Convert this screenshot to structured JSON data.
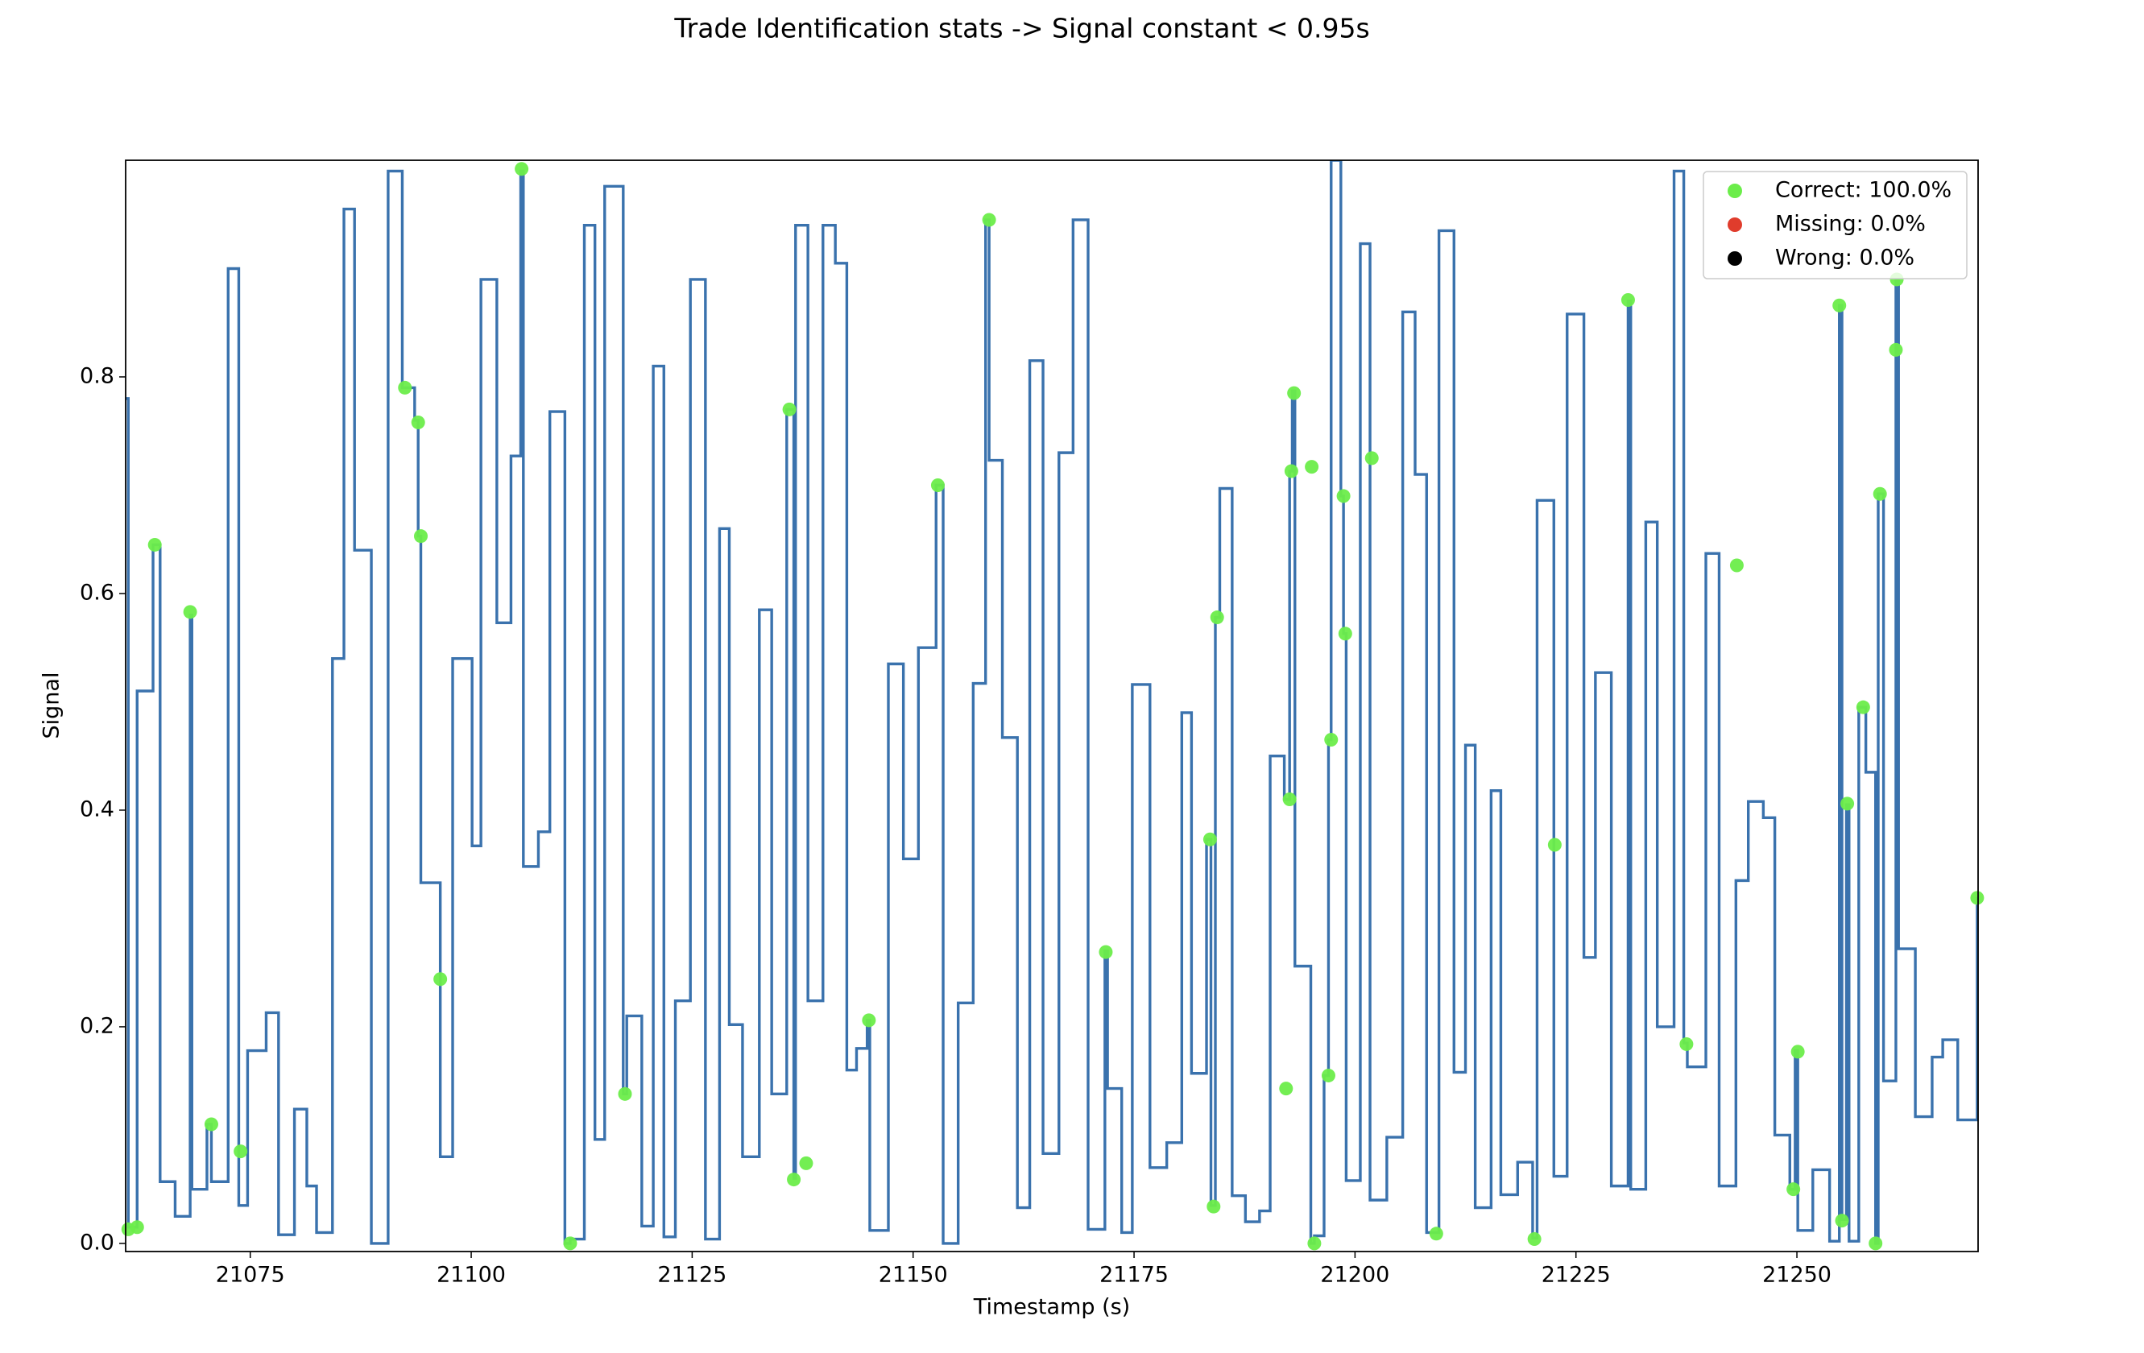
{
  "chart_data": {
    "type": "line",
    "step": "post",
    "title": "Trade Identification stats -> Signal constant < 0.95s",
    "xlabel": "Timestamp (s)",
    "ylabel": "Signal",
    "color": "#3a72ad",
    "xlim": [
      21060.9,
      21270.5
    ],
    "ylim": [
      -0.0075,
      1.0
    ],
    "xticks": [
      21075,
      21100,
      21125,
      21150,
      21175,
      21200,
      21225,
      21250
    ],
    "yticks": [
      {
        "value": 0,
        "label": "0.0"
      },
      0.2,
      0.4,
      0.6,
      0.8
    ],
    "legend": "upper right",
    "x": [
      21060.9,
      21061.2,
      21062.2,
      21064.0,
      21064.8,
      21066.5,
      21068.2,
      21068.4,
      21070.1,
      21070.6,
      21072.5,
      21073.7,
      21074.7,
      21076.8,
      21078.2,
      21080.0,
      21081.4,
      21082.5,
      21084.3,
      21085.6,
      21086.8,
      21088.7,
      21090.6,
      21092.2,
      21093.6,
      21094.0,
      21094.3,
      21096.5,
      21097.9,
      21100.1,
      21101.1,
      21102.9,
      21104.5,
      21105.6,
      21105.9,
      21107.6,
      21108.9,
      21110.6,
      21111.2,
      21112.8,
      21114.0,
      21115.1,
      21117.2,
      21117.6,
      21119.3,
      21120.6,
      21121.8,
      21123.1,
      21124.8,
      21126.5,
      21128.1,
      21129.2,
      21130.7,
      21132.6,
      21134.0,
      21135.7,
      21136.5,
      21136.7,
      21138.1,
      21139.8,
      21141.2,
      21142.5,
      21143.6,
      21144.8,
      21145.1,
      21147.2,
      21148.9,
      21150.6,
      21152.6,
      21153.4,
      21155.1,
      21156.8,
      21158.2,
      21158.6,
      21160.1,
      21161.8,
      21163.2,
      21164.7,
      21166.5,
      21168.1,
      21169.8,
      21171.7,
      21172.0,
      21173.6,
      21174.8,
      21176.8,
      21178.7,
      21180.4,
      21181.5,
      21183.2,
      21183.7,
      21184.2,
      21184.7,
      21186.1,
      21187.6,
      21189.2,
      21190.4,
      21192.0,
      21192.6,
      21192.9,
      21193.2,
      21195.0,
      21195.4,
      21196.5,
      21197.0,
      21197.3,
      21198.4,
      21198.7,
      21199.0,
      21200.6,
      21201.7,
      21203.6,
      21205.4,
      21206.8,
      21208.1,
      21209.5,
      21211.2,
      21212.5,
      21213.6,
      21215.4,
      21216.5,
      21218.4,
      21220.1,
      21220.6,
      21222.5,
      21224.0,
      21225.9,
      21227.2,
      21229.0,
      21230.9,
      21231.2,
      21232.9,
      21234.2,
      21236.1,
      21237.2,
      21237.6,
      21239.7,
      21241.2,
      21243.1,
      21244.5,
      21246.2,
      21247.5,
      21249.2,
      21249.8,
      21250.1,
      21251.8,
      21253.7,
      21254.8,
      21255.1,
      21255.6,
      21255.9,
      21257.0,
      21257.8,
      21258.9,
      21259.2,
      21259.8,
      21261.2,
      21261.5,
      21263.4,
      21265.3,
      21266.5,
      21268.2,
      21270.4
    ],
    "values": [
      0.78,
      0.015,
      0.51,
      0.645,
      0.057,
      0.025,
      0.58,
      0.05,
      0.11,
      0.057,
      0.9,
      0.035,
      0.178,
      0.213,
      0.008,
      0.124,
      0.053,
      0.01,
      0.54,
      0.955,
      0.64,
      0.0,
      0.99,
      0.79,
      0.76,
      0.653,
      0.333,
      0.08,
      0.54,
      0.367,
      0.89,
      0.573,
      0.727,
      0.99,
      0.348,
      0.38,
      0.768,
      0.0,
      0.004,
      0.94,
      0.096,
      0.976,
      0.138,
      0.21,
      0.016,
      0.81,
      0.006,
      0.224,
      0.89,
      0.004,
      0.66,
      0.202,
      0.08,
      0.585,
      0.138,
      0.77,
      0.06,
      0.94,
      0.224,
      0.94,
      0.905,
      0.16,
      0.18,
      0.206,
      0.012,
      0.535,
      0.355,
      0.55,
      0.7,
      0.0,
      0.222,
      0.517,
      0.945,
      0.723,
      0.467,
      0.033,
      0.815,
      0.083,
      0.73,
      0.945,
      0.013,
      0.27,
      0.143,
      0.01,
      0.516,
      0.07,
      0.093,
      0.49,
      0.157,
      0.373,
      0.035,
      0.578,
      0.697,
      0.044,
      0.02,
      0.03,
      0.45,
      0.41,
      0.713,
      0.787,
      0.256,
      0.0,
      0.007,
      0.155,
      0.465,
      1.0,
      0.69,
      0.563,
      0.058,
      0.923,
      0.04,
      0.098,
      0.86,
      0.71,
      0.01,
      0.935,
      0.158,
      0.46,
      0.033,
      0.418,
      0.045,
      0.075,
      0.005,
      0.686,
      0.062,
      0.858,
      0.264,
      0.527,
      0.053,
      0.87,
      0.05,
      0.666,
      0.2,
      0.99,
      0.185,
      0.163,
      0.637,
      0.053,
      0.335,
      0.408,
      0.393,
      0.1,
      0.05,
      0.178,
      0.012,
      0.068,
      0.002,
      0.866,
      0.022,
      0.405,
      0.002,
      0.495,
      0.435,
      0.0,
      0.692,
      0.15,
      0.89,
      0.272,
      0.117,
      0.172,
      0.188,
      0.114,
      0.32
    ],
    "markers": [
      {
        "name": "Correct: 100.0%",
        "color": "#6bed4a",
        "x": [
          21061.2,
          21062.2,
          21064.2,
          21068.2,
          21070.6,
          21073.9,
          21092.5,
          21094.0,
          21094.3,
          21096.5,
          21105.7,
          21111.2,
          21117.4,
          21136.0,
          21136.5,
          21137.9,
          21145.0,
          21152.8,
          21158.6,
          21171.8,
          21183.6,
          21184.0,
          21184.4,
          21192.2,
          21192.6,
          21192.8,
          21193.1,
          21195.1,
          21195.4,
          21197.0,
          21197.3,
          21198.7,
          21198.9,
          21201.9,
          21209.2,
          21220.3,
          21222.6,
          21230.9,
          21237.5,
          21243.2,
          21249.6,
          21250.1,
          21254.8,
          21255.1,
          21255.7,
          21257.5,
          21258.9,
          21259.4,
          21261.2,
          21261.3,
          21270.4
        ],
        "values": [
          0.013,
          0.015,
          0.645,
          0.583,
          0.11,
          0.085,
          0.79,
          0.758,
          0.653,
          0.244,
          0.992,
          0.0,
          0.138,
          0.77,
          0.059,
          0.074,
          0.206,
          0.7,
          0.945,
          0.269,
          0.373,
          0.034,
          0.578,
          0.143,
          0.41,
          0.713,
          0.785,
          0.717,
          0.0,
          0.155,
          0.465,
          0.69,
          0.563,
          0.725,
          0.009,
          0.004,
          0.368,
          0.871,
          0.184,
          0.626,
          0.05,
          0.177,
          0.866,
          0.021,
          0.406,
          0.495,
          0.0,
          0.692,
          0.825,
          0.89,
          0.319
        ]
      },
      {
        "name": "Missing: 0.0%",
        "color": "#e03c2c",
        "x": [],
        "values": []
      },
      {
        "name": "Wrong: 0.0%",
        "color": "#000000",
        "x": [],
        "values": []
      }
    ]
  }
}
